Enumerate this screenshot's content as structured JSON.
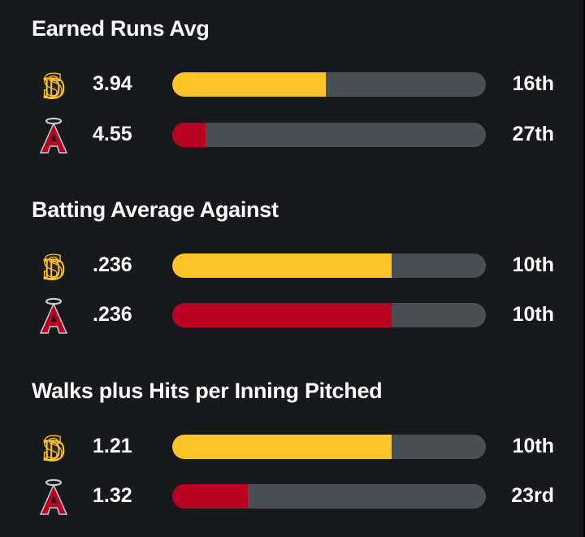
{
  "colors": {
    "padres": "#fec325",
    "angels": "#ba0021",
    "track": "#4a4f56",
    "background": "#17191c"
  },
  "teams": {
    "padres": {
      "logo_icon": "padres-sd-logo-icon"
    },
    "angels": {
      "logo_icon": "angels-a-halo-logo-icon"
    }
  },
  "chart_data": [
    {
      "type": "bar",
      "title": "Earned Runs Avg",
      "series": [
        {
          "team": "padres",
          "value": "3.94",
          "rank": "16th",
          "fill_fraction": 0.49
        },
        {
          "team": "angels",
          "value": "4.55",
          "rank": "27th",
          "fill_fraction": 0.105
        }
      ]
    },
    {
      "type": "bar",
      "title": "Batting Average Against",
      "series": [
        {
          "team": "padres",
          "value": ".236",
          "rank": "10th",
          "fill_fraction": 0.7
        },
        {
          "team": "angels",
          "value": ".236",
          "rank": "10th",
          "fill_fraction": 0.7
        }
      ]
    },
    {
      "type": "bar",
      "title": "Walks plus Hits per Inning Pitched",
      "series": [
        {
          "team": "padres",
          "value": "1.21",
          "rank": "10th",
          "fill_fraction": 0.7
        },
        {
          "team": "angels",
          "value": "1.32",
          "rank": "23rd",
          "fill_fraction": 0.24
        }
      ]
    }
  ]
}
